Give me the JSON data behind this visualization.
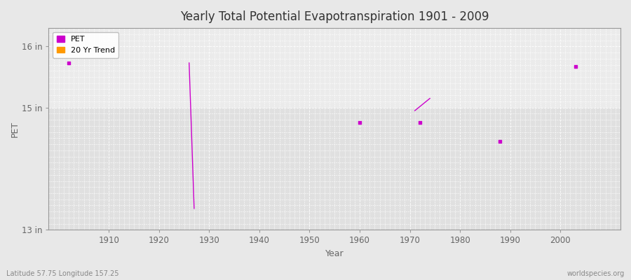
{
  "title": "Yearly Total Potential Evapotranspiration 1901 - 2009",
  "xlabel": "Year",
  "ylabel": "PET",
  "subtitle_left": "Latitude 57.75 Longitude 157.25",
  "subtitle_right": "worldspecies.org",
  "ylim": [
    13.0,
    16.3
  ],
  "xlim": [
    1898,
    2012
  ],
  "yticks": [
    13,
    15,
    16
  ],
  "ytick_labels": [
    "13 in",
    "15 in",
    "16 in"
  ],
  "xticks": [
    1910,
    1920,
    1930,
    1940,
    1950,
    1960,
    1970,
    1980,
    1990,
    2000
  ],
  "bg_color": "#e8e8e8",
  "plot_bg_upper": "#ebebeb",
  "plot_bg_lower": "#e0e0e0",
  "grid_color": "#ffffff",
  "pet_color": "#cc00cc",
  "trend_color": "#ff9900",
  "pet_points": [
    [
      1902,
      15.73
    ],
    [
      1960,
      14.76
    ],
    [
      1972,
      14.76
    ],
    [
      1988,
      14.45
    ],
    [
      2003,
      15.67
    ]
  ],
  "trend_segments": [
    [
      [
        1926,
        15.73
      ],
      [
        1927,
        13.35
      ]
    ],
    [
      [
        1971,
        14.95
      ],
      [
        1974,
        15.15
      ]
    ]
  ],
  "legend_pet_label": "PET",
  "legend_trend_label": "20 Yr Trend"
}
